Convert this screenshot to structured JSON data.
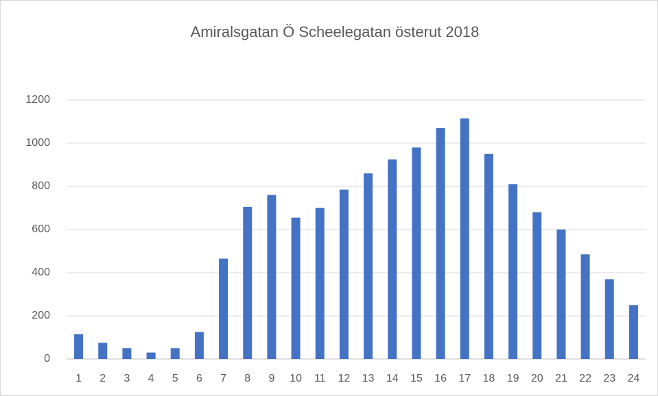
{
  "chart_data": {
    "type": "bar",
    "title": "Amiralsgatan Ö Scheelegatan österut 2018",
    "categories": [
      "1",
      "2",
      "3",
      "4",
      "5",
      "6",
      "7",
      "8",
      "9",
      "10",
      "11",
      "12",
      "13",
      "14",
      "15",
      "16",
      "17",
      "18",
      "19",
      "20",
      "21",
      "22",
      "23",
      "24"
    ],
    "values": [
      115,
      75,
      50,
      30,
      50,
      125,
      465,
      705,
      760,
      655,
      700,
      785,
      860,
      925,
      980,
      1070,
      1115,
      950,
      810,
      680,
      600,
      485,
      370,
      250
    ],
    "color": "#4472c4",
    "ylim": [
      0,
      1200
    ],
    "yticks": [
      0,
      200,
      400,
      600,
      800,
      1000,
      1200
    ],
    "grid": true
  }
}
